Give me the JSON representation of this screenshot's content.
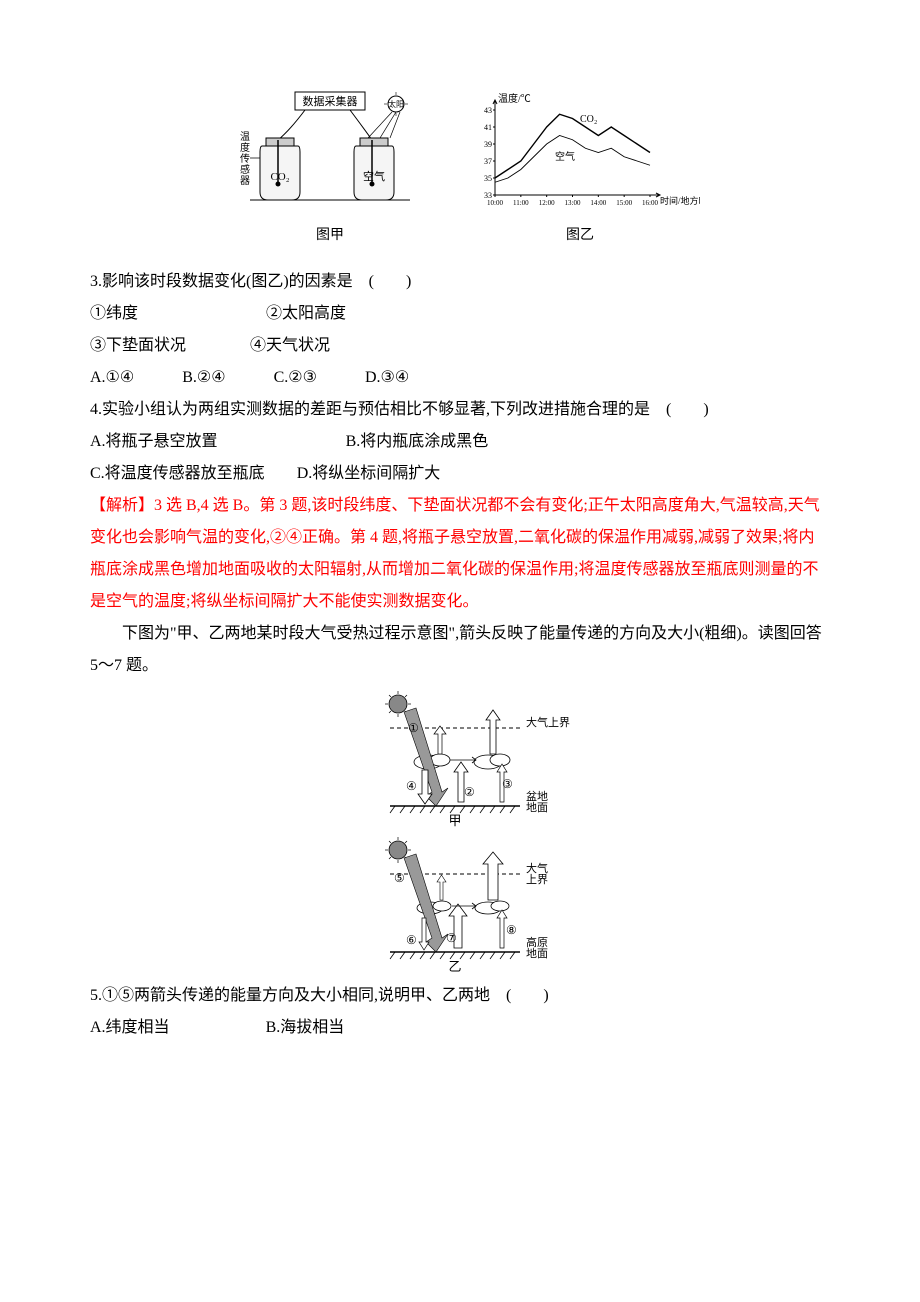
{
  "figA": {
    "collectorLabel": "数据采集器",
    "sunLabel": "太阳",
    "sensorLabel": "温度传感器",
    "jar1": "CO₂",
    "jar2": "空气",
    "caption": "图甲"
  },
  "figB": {
    "yLabel": "温度/℃",
    "xLabel": "时间/地方时",
    "series1": "CO₂",
    "series2": "空气",
    "yTicks": [
      "43",
      "41",
      "39",
      "37",
      "35",
      "33"
    ],
    "xTicks": [
      "10:00",
      "11:00",
      "12:00",
      "13:00",
      "14:00",
      "15:00",
      "16:00"
    ],
    "caption": "图乙",
    "series1_points": [
      [
        0,
        35
      ],
      [
        10,
        36
      ],
      [
        20,
        37
      ],
      [
        30,
        39
      ],
      [
        40,
        41
      ],
      [
        50,
        42.5
      ],
      [
        60,
        42
      ],
      [
        70,
        41
      ],
      [
        80,
        40
      ],
      [
        90,
        41
      ],
      [
        100,
        40
      ],
      [
        110,
        39
      ],
      [
        120,
        38
      ]
    ],
    "series2_points": [
      [
        0,
        34.5
      ],
      [
        10,
        35
      ],
      [
        20,
        36
      ],
      [
        30,
        37.5
      ],
      [
        40,
        39
      ],
      [
        50,
        40
      ],
      [
        60,
        39.5
      ],
      [
        70,
        38.5
      ],
      [
        80,
        38
      ],
      [
        90,
        38.5
      ],
      [
        100,
        37.5
      ],
      [
        110,
        37
      ],
      [
        120,
        36.5
      ]
    ],
    "xMin": 0,
    "xMax": 120,
    "yMin": 33,
    "yMax": 43
  },
  "q3": {
    "stem": "3.影响该时段数据变化(图乙)的因素是　(　　)",
    "f1": "①纬度",
    "f2": "②太阳高度",
    "f3": "③下垫面状况",
    "f4": "④天气状况",
    "optA": "A.①④",
    "optB": "B.②④",
    "optC": "C.②③",
    "optD": "D.③④"
  },
  "q4": {
    "stem": "4.实验小组认为两组实测数据的差距与预估相比不够显著,下列改进措施合理的是　(　　)",
    "optA": "A.将瓶子悬空放置",
    "optB": "B.将内瓶底涂成黑色",
    "optC": "C.将温度传感器放至瓶底",
    "optD": "D.将纵坐标间隔扩大"
  },
  "analysis34": "【解析】3 选 B,4 选 B。第 3 题,该时段纬度、下垫面状况都不会有变化;正午太阳高度角大,气温较高,天气变化也会影响气温的变化,②④正确。第 4 题,将瓶子悬空放置,二氧化碳的保温作用减弱,减弱了效果;将内瓶底涂成黑色增加地面吸收的太阳辐射,从而增加二氧化碳的保温作用;将温度传感器放至瓶底则测量的不是空气的温度;将纵坐标间隔扩大不能使实测数据变化。",
  "intro57": "下图为\"甲、乙两地某时段大气受热过程示意图\",箭头反映了能量传递的方向及大小(粗细)。读图回答 5～7 题。",
  "fig57": {
    "sun": "☀",
    "atmTop": "大气上界",
    "basin": "盆地地面",
    "plateau": "高原地面",
    "capA": "甲",
    "capB": "乙",
    "m1": "①",
    "m2": "②",
    "m3": "③",
    "m4": "④",
    "m5": "⑤",
    "m6": "⑥",
    "m7": "⑦",
    "m8": "⑧"
  },
  "q5": {
    "stem": "5.①⑤两箭头传递的能量方向及大小相同,说明甲、乙两地　(　　)",
    "optA": "A.纬度相当",
    "optB": "B.海拔相当"
  }
}
